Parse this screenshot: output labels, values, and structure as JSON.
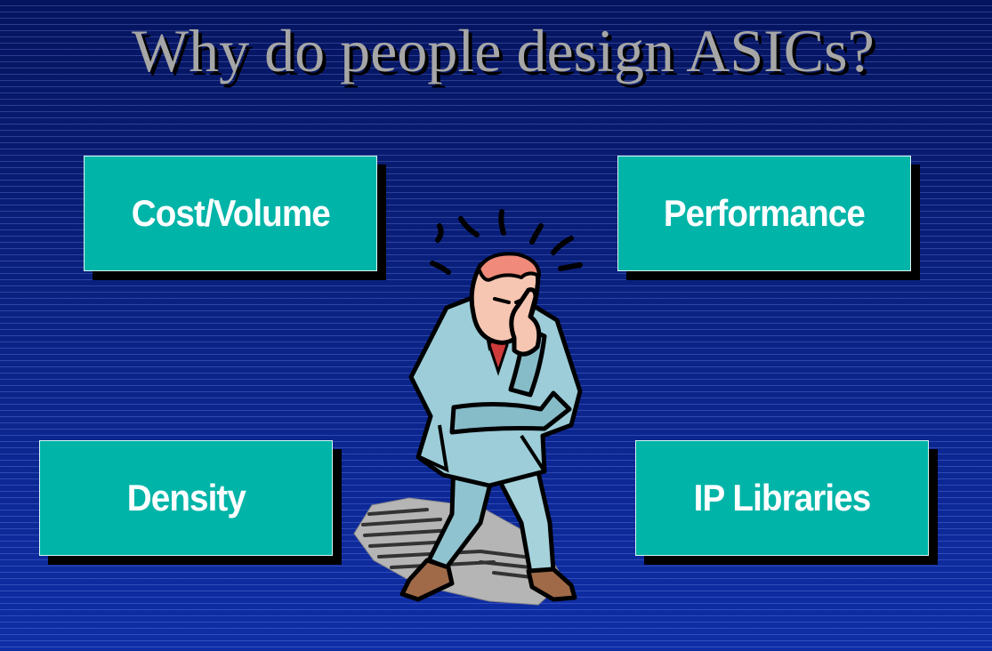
{
  "slide": {
    "title": "Why do people design ASICs?",
    "boxes": {
      "cost_volume": "Cost/Volume",
      "performance": "Performance",
      "density": "Density",
      "ip_libraries": "IP Libraries"
    },
    "illustration": "thinking-businessman-icon",
    "colors": {
      "background": "#0a2180",
      "box_fill": "#00b4a8",
      "box_text": "#ffffff",
      "title_text": "#a6a6a6"
    }
  }
}
